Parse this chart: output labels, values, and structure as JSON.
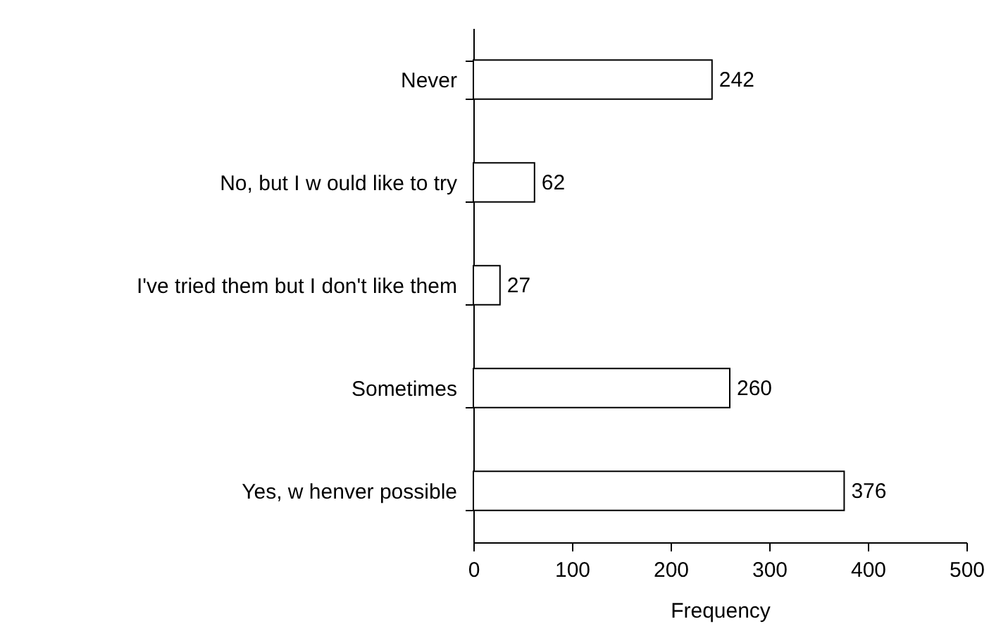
{
  "chart_data": {
    "type": "bar",
    "orientation": "horizontal",
    "categories": [
      "Never",
      "No, but I w ould like to try",
      "I've tried them but I don't like them",
      "Sometimes",
      "Yes, w henver possible"
    ],
    "values": [
      242,
      62,
      27,
      260,
      376
    ],
    "color": "#ffffff",
    "xlabel": "Frequency",
    "xlim": [
      0,
      500
    ],
    "xticks": [
      0,
      100,
      200,
      300,
      400,
      500
    ],
    "data_labels": true,
    "grid": false
  }
}
